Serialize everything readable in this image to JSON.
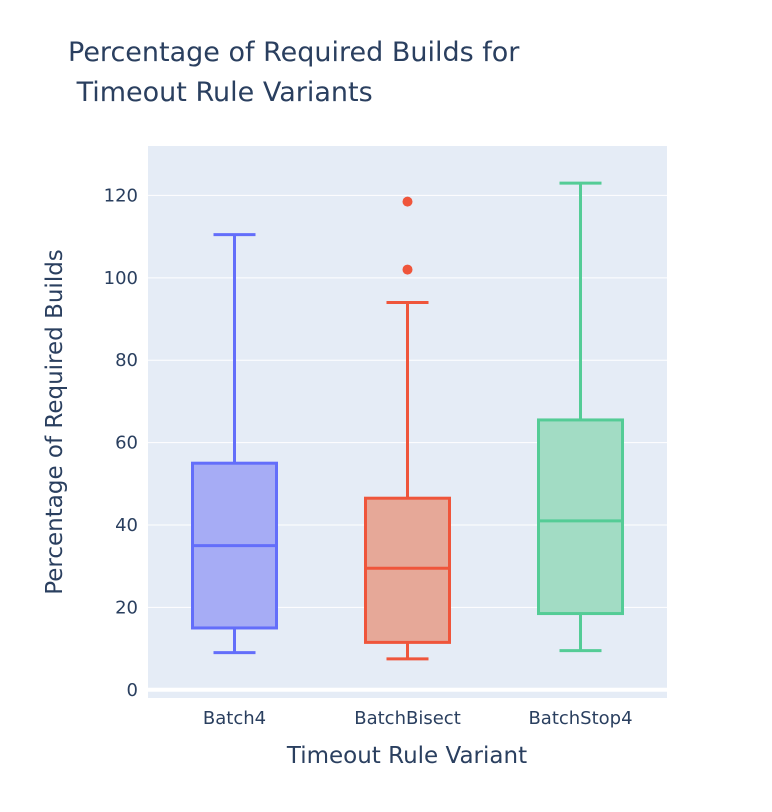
{
  "chart_data": {
    "type": "box",
    "title_lines": [
      "Percentage of Required Builds for",
      " Timeout Rule Variants"
    ],
    "xlabel": "Timeout Rule Variant",
    "ylabel": "Percentage of Required Builds",
    "ylim": [
      -2,
      132
    ],
    "yticks": [
      0,
      20,
      40,
      60,
      80,
      100,
      120
    ],
    "grid": true,
    "legend": "none",
    "categories": [
      "Batch4",
      "BatchBisect",
      "BatchStop4"
    ],
    "boxes": [
      {
        "category": "Batch4",
        "min": 9,
        "q1": 15,
        "median": 35,
        "q3": 55,
        "max": 110.5,
        "outliers": [],
        "color": "#636efa",
        "fill": "#a6acf5"
      },
      {
        "category": "BatchBisect",
        "min": 7.5,
        "q1": 11.5,
        "median": 29.5,
        "q3": 46.5,
        "max": 94,
        "outliers": [
          102,
          118.5
        ],
        "color": "#ef553b",
        "fill": "#e6a898"
      },
      {
        "category": "BatchStop4",
        "min": 9.5,
        "q1": 18.5,
        "median": 41,
        "q3": 65.5,
        "max": 123,
        "outliers": [],
        "color": "#54cc96",
        "fill": "#a2dcc4"
      }
    ]
  }
}
